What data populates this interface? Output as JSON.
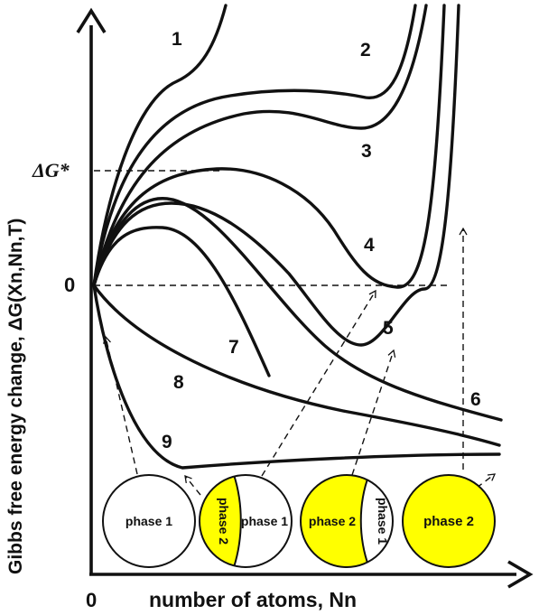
{
  "chart_data": {
    "type": "line",
    "title": "",
    "xlabel": "number of atoms, Nn",
    "ylabel": "Gibbs free energy change, ΔG(Xn,Nn,T)",
    "x_tick_labels": [
      "0"
    ],
    "y_tick_labels": [
      "0",
      "ΔG*"
    ],
    "grid": false,
    "legend": "none",
    "series": [
      {
        "name": "1"
      },
      {
        "name": "2"
      },
      {
        "name": "3"
      },
      {
        "name": "4"
      },
      {
        "name": "5"
      },
      {
        "name": "6"
      },
      {
        "name": "7"
      },
      {
        "name": "8"
      },
      {
        "name": "9"
      }
    ],
    "insets": [
      {
        "label": "phase 1",
        "fill": "#ffffff"
      },
      {
        "label_left": "phase 2",
        "label_right": "phase 1",
        "fill_left": "#ffff00",
        "fill_right": "#ffffff"
      },
      {
        "label_left": "phase 2",
        "label_right": "phase 1",
        "fill_left": "#ffff00",
        "fill_right": "#ffffff"
      },
      {
        "label": "phase 2",
        "fill": "#ffff00"
      }
    ]
  },
  "colors": {
    "ink": "#111111",
    "phase2": "#ffff00",
    "phase1": "#ffffff"
  }
}
